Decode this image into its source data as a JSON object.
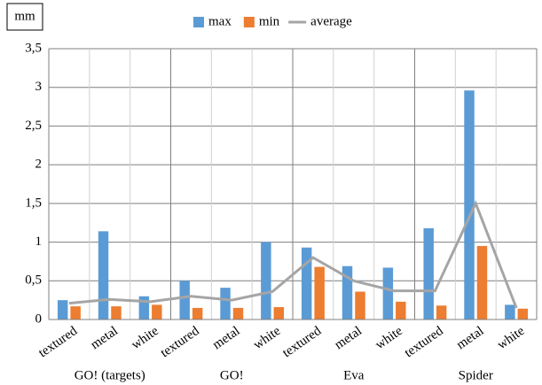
{
  "chart_data": {
    "type": "bar",
    "y_label": "mm",
    "categories": [
      "textured",
      "metal",
      "white",
      "textured",
      "metal",
      "white",
      "textured",
      "metal",
      "white",
      "textured",
      "metal",
      "white"
    ],
    "groups": [
      "GO! (targets)",
      "GO!",
      "Eva",
      "Spider"
    ],
    "series": [
      {
        "name": "max",
        "type": "bar",
        "color": "#5b9bd5",
        "values": [
          0.25,
          1.14,
          0.3,
          0.5,
          0.41,
          1.0,
          0.93,
          0.69,
          0.67,
          1.18,
          2.96,
          0.19
        ]
      },
      {
        "name": "min",
        "type": "bar",
        "color": "#ed7d31",
        "values": [
          0.17,
          0.17,
          0.19,
          0.15,
          0.15,
          0.16,
          0.68,
          0.36,
          0.23,
          0.18,
          0.95,
          0.14
        ]
      },
      {
        "name": "average",
        "type": "line",
        "color": "#a5a5a5",
        "values": [
          0.21,
          0.26,
          0.23,
          0.3,
          0.25,
          0.36,
          0.8,
          0.5,
          0.37,
          0.37,
          1.5,
          0.15
        ]
      }
    ],
    "ylim": [
      0,
      3.5
    ],
    "yticks": [
      0,
      {
        "value": 0.5,
        "label": "0,5"
      },
      1,
      {
        "value": 1.5,
        "label": "1,5"
      },
      2,
      {
        "value": 2.5,
        "label": "2,5"
      },
      3,
      {
        "value": 3.5,
        "label": "3,5"
      }
    ],
    "grid": true
  }
}
